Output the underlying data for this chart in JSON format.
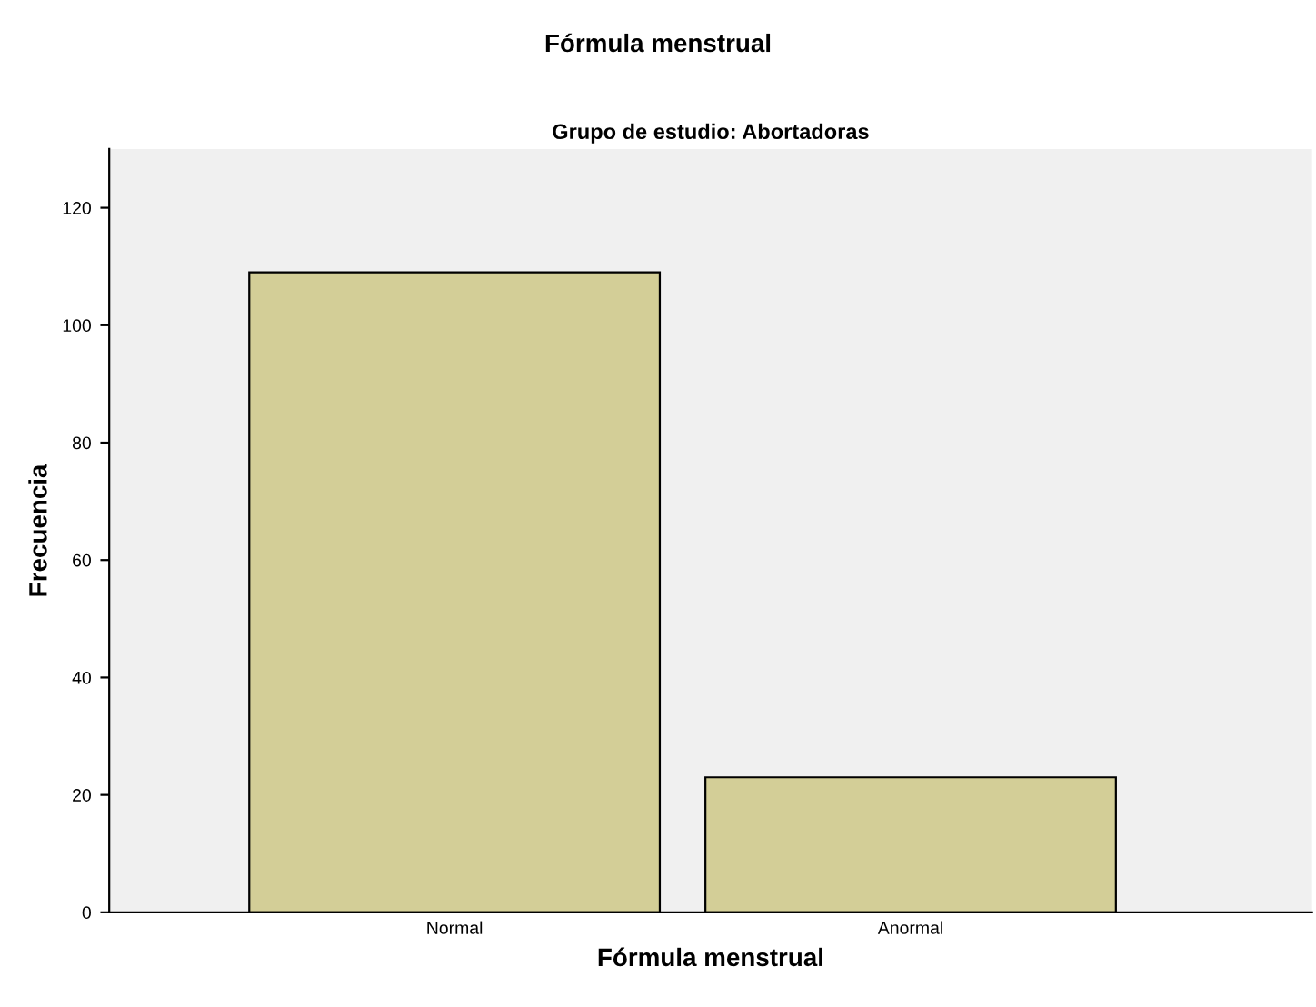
{
  "chart_data": {
    "type": "bar",
    "title": "Fórmula menstrual",
    "subtitle": "Grupo de estudio: Abortadoras",
    "xlabel": "Fórmula menstrual",
    "ylabel": "Frecuencia",
    "categories": [
      "Normal",
      "Anormal"
    ],
    "values": [
      109,
      23
    ],
    "color": "#d3ce97",
    "ylim": [
      0,
      130
    ],
    "yticks": [
      0,
      20,
      40,
      60,
      80,
      100,
      120
    ],
    "grid": false,
    "legend": false
  }
}
